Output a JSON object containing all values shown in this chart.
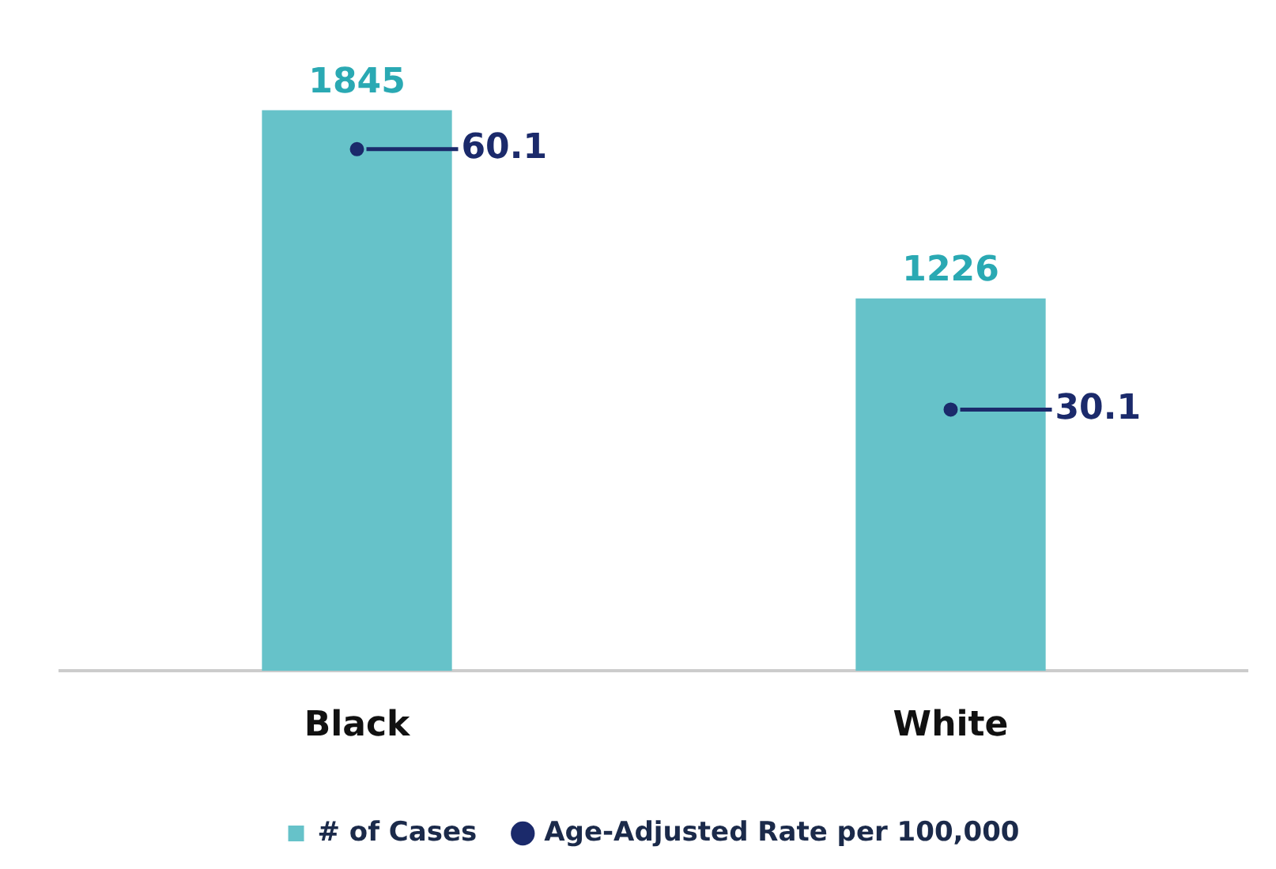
{
  "chart_data": {
    "type": "bar",
    "categories": [
      "Black",
      "White"
    ],
    "series": [
      {
        "name": "# of Cases",
        "type": "bar",
        "color": "#66c2c9",
        "values": [
          1845,
          1226
        ]
      },
      {
        "name": "Age-Adjusted Rate per 100,000",
        "type": "scatter",
        "axis": "y2",
        "color": "#1b2a6b",
        "x": [
          "Black",
          "White"
        ],
        "values": [
          60.1,
          30.1
        ]
      }
    ],
    "tick_labels": "x",
    "grid": false,
    "legend": "bottom",
    "marker": "circle",
    "data_labels": true
  }
}
